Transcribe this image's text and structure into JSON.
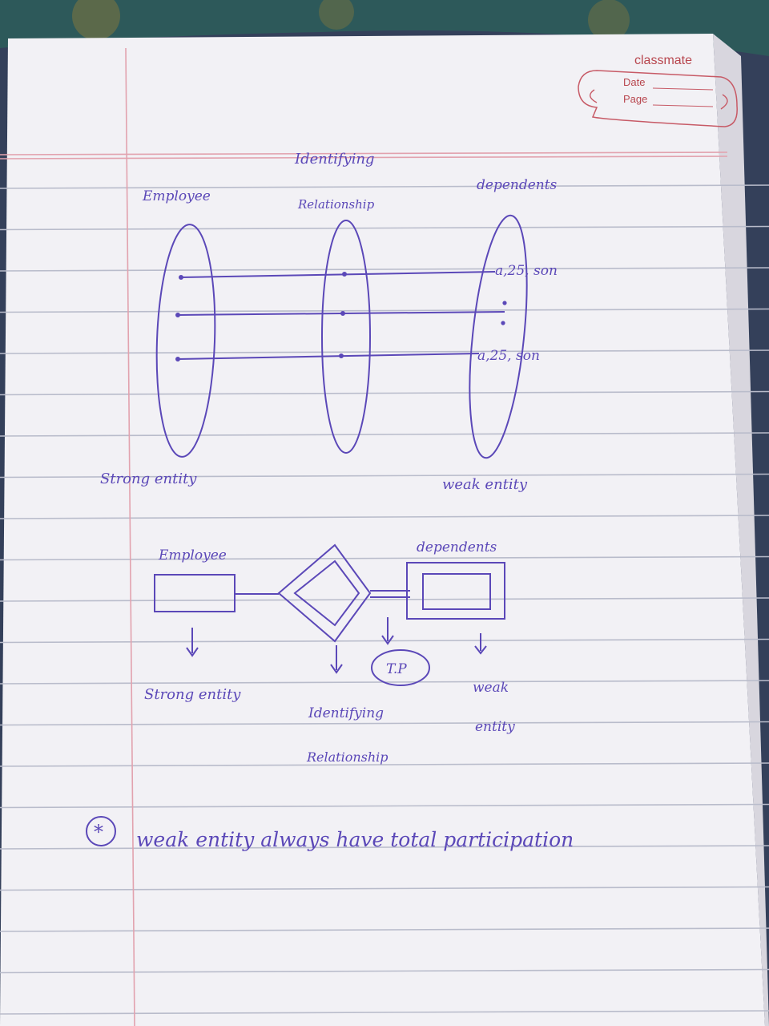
{
  "notebook": {
    "brand": "classmate",
    "date_label": "Date",
    "page_label": "Page"
  },
  "top_diagram": {
    "col_employee": "Employee",
    "col_rel_line1": "Identifying",
    "col_rel_line2": "Relationship",
    "col_dependents": "dependents",
    "row1_value": "a,25, son",
    "row2_value": "a,25, son",
    "label_strong": "Strong entity",
    "label_weak": "weak entity"
  },
  "er_diagram": {
    "employee_label": "Employee",
    "dependents_label": "dependents",
    "tp_label": "T.P",
    "strong_label": "Strong entity",
    "identifying_line1": "Identifying",
    "identifying_line2": "Relationship",
    "weak_line1": "weak",
    "weak_line2": "entity"
  },
  "note": {
    "marker": "*",
    "text": "weak entity always have total participation"
  },
  "colors": {
    "ink": "#5b48b8",
    "paper": "#f2f1f5",
    "rule": "#b9bccb",
    "margin": "#e2a2ae",
    "brand": "#b8464e"
  }
}
